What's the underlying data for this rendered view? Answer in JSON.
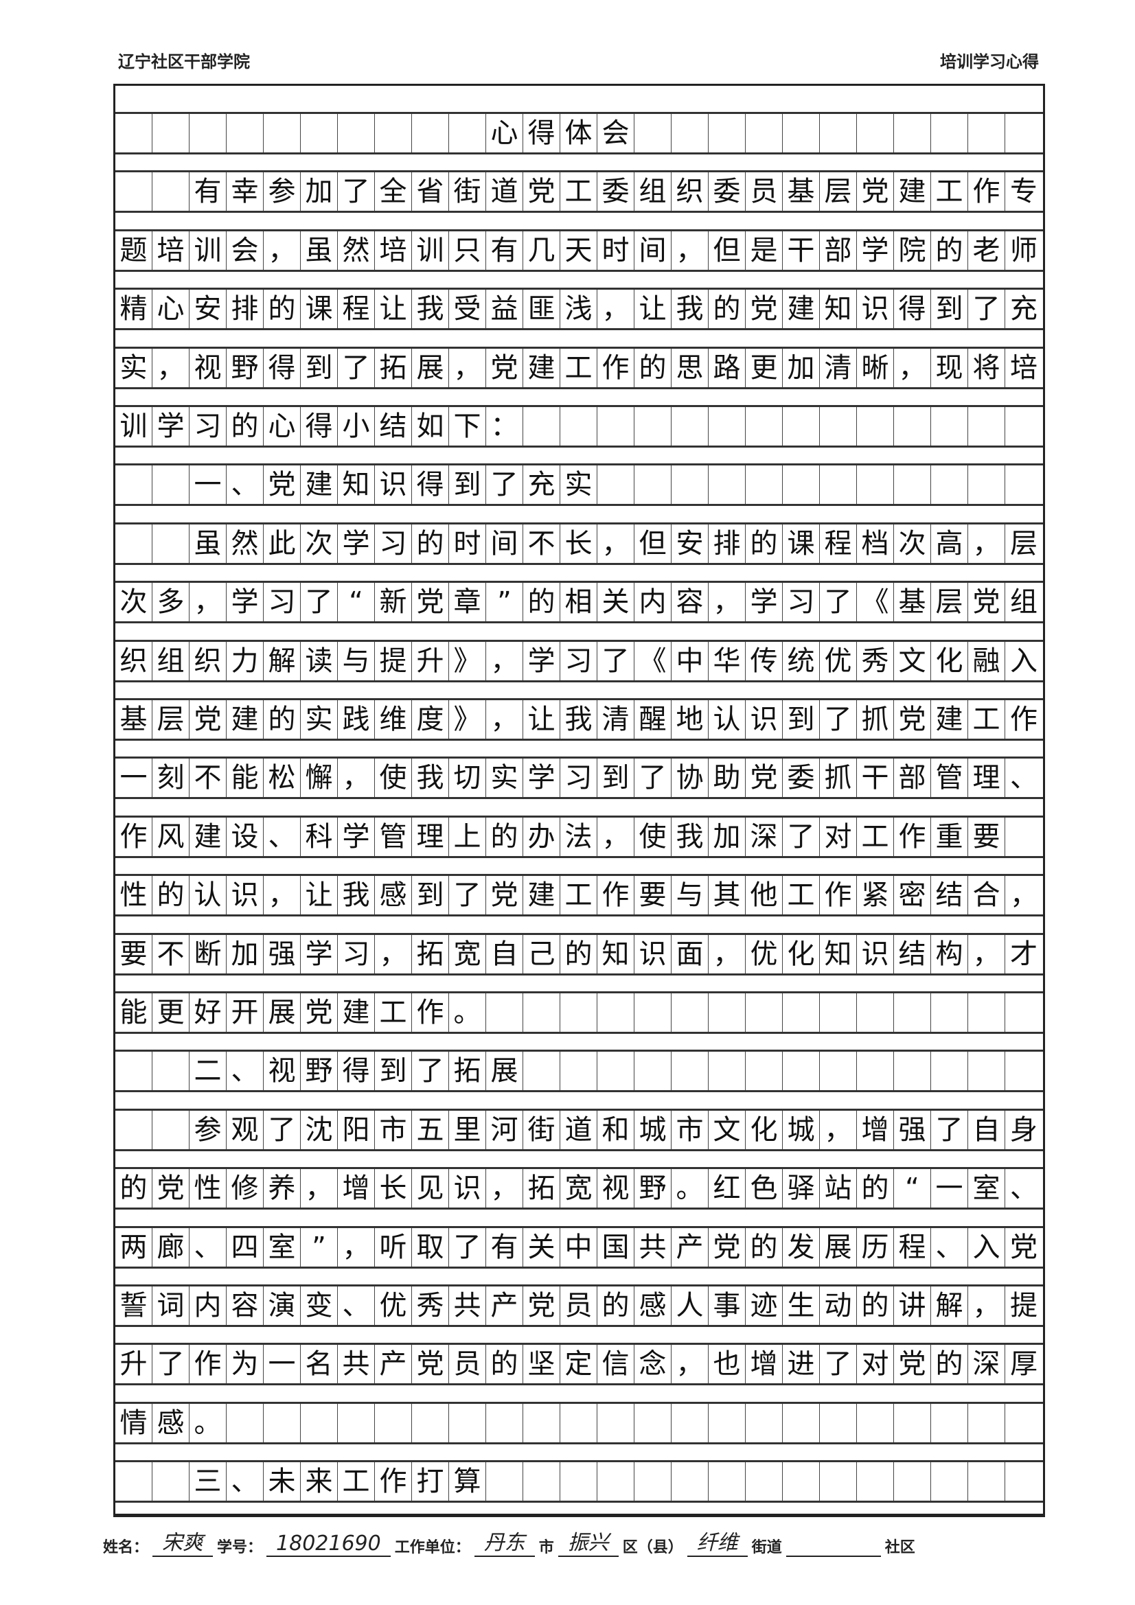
{
  "header": {
    "left": "辽宁社区干部学院",
    "right": "培训学习心得"
  },
  "lines": [
    {
      "text": "心得体会",
      "start": 10
    },
    {
      "text": "有幸参加了全省街道党工委组织委员基层党建工作专",
      "start": 2
    },
    {
      "text": "题培训会，虽然培训只有几天时间，但是干部学院的老师",
      "start": 0
    },
    {
      "text": "精心安排的课程让我受益匪浅，让我的党建知识得到了充",
      "start": 0
    },
    {
      "text": "实，视野得到了拓展，党建工作的思路更加清晰，现将培",
      "start": 0
    },
    {
      "text": "训学习的心得小结如下：",
      "start": 0
    },
    {
      "text": "一、党建知识得到了充实",
      "start": 2
    },
    {
      "text": "虽然此次学习的时间不长，但安排的课程档次高，层",
      "start": 2
    },
    {
      "text": "次多，学习了“新党章”的相关内容，学习了《基层党组",
      "start": 0
    },
    {
      "text": "织组织力解读与提升》，学习了《中华传统优秀文化融入",
      "start": 0
    },
    {
      "text": "基层党建的实践维度》，让我清醒地认识到了抓党建工作，",
      "start": 0
    },
    {
      "text": "一刻不能松懈，使我切实学习到了协助党委抓干部管理、",
      "start": 0
    },
    {
      "text": "作风建设、科学管理上的办法，使我加深了对工作重要",
      "start": 0
    },
    {
      "text": "性的认识，让我感到了党建工作要与其他工作紧密结合，",
      "start": 0
    },
    {
      "text": "要不断加强学习，拓宽自己的知识面，优化知识结构，才",
      "start": 0
    },
    {
      "text": "能更好开展党建工作。",
      "start": 0
    },
    {
      "text": "二、视野得到了拓展",
      "start": 2
    },
    {
      "text": "参观了沈阳市五里河街道和城市文化城，增强了自身",
      "start": 2
    },
    {
      "text": "的党性修养，增长见识，拓宽视野。红色驿站的“一室、",
      "start": 0
    },
    {
      "text": "两廊、四室”，听取了有关中国共产党的发展历程、入党",
      "start": 0
    },
    {
      "text": "誓词内容演变、优秀共产党员的感人事迹生动的讲解，提",
      "start": 0
    },
    {
      "text": "升了作为一名共产党员的坚定信念，也增进了对党的深厚",
      "start": 0
    },
    {
      "text": "情感。",
      "start": 0
    },
    {
      "text": "三、未来工作打算",
      "start": 2
    }
  ],
  "footer": {
    "name_label": "姓名：",
    "name": "宋爽",
    "id_label": "学号：",
    "id": "18021690",
    "unit_label": "工作单位：",
    "city": "丹东",
    "city_label": "市",
    "district": "振兴",
    "district_label": "区（县）",
    "street": "纤维",
    "street_label": "街道",
    "community": "",
    "community_label": "社区"
  }
}
